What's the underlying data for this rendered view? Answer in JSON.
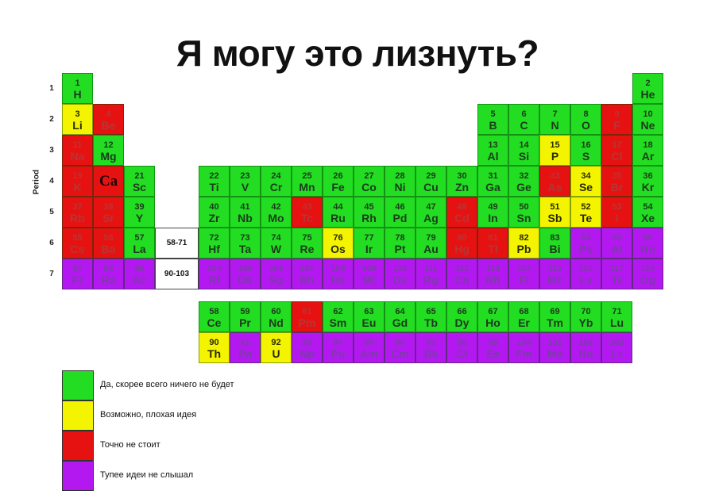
{
  "title": "Я могу это лизнуть?",
  "period_axis_label": "Period",
  "periods": [
    "1",
    "2",
    "3",
    "4",
    "5",
    "6",
    "7"
  ],
  "colors": {
    "g": "#22dd22",
    "y": "#f4f400",
    "r": "#e61212",
    "p": "#b418f0"
  },
  "legend": [
    {
      "category": "g",
      "label": "Да, скорее всего ничего не будет"
    },
    {
      "category": "y",
      "label": "Возможно, плохая идея"
    },
    {
      "category": "r",
      "label": "Точно не стоит"
    },
    {
      "category": "p",
      "label": "Тупее идеи не слышал"
    }
  ],
  "placeholders": {
    "lanthanides": "58-71",
    "actinides": "90-103"
  },
  "elements": [
    [
      "1",
      "H",
      1,
      1,
      "g"
    ],
    [
      "2",
      "He",
      1,
      18,
      "g"
    ],
    [
      "3",
      "Li",
      2,
      1,
      "y"
    ],
    [
      "4",
      "Be",
      2,
      2,
      "r"
    ],
    [
      "5",
      "B",
      2,
      13,
      "g"
    ],
    [
      "6",
      "C",
      2,
      14,
      "g"
    ],
    [
      "7",
      "N",
      2,
      15,
      "g"
    ],
    [
      "8",
      "O",
      2,
      16,
      "g"
    ],
    [
      "9",
      "F",
      2,
      17,
      "r"
    ],
    [
      "10",
      "Ne",
      2,
      18,
      "g"
    ],
    [
      "11",
      "Na",
      3,
      1,
      "r"
    ],
    [
      "12",
      "Mg",
      3,
      2,
      "g"
    ],
    [
      "13",
      "Al",
      3,
      13,
      "g"
    ],
    [
      "14",
      "Si",
      3,
      14,
      "g"
    ],
    [
      "15",
      "P",
      3,
      15,
      "y"
    ],
    [
      "16",
      "S",
      3,
      16,
      "g"
    ],
    [
      "17",
      "Cl",
      3,
      17,
      "r"
    ],
    [
      "18",
      "Ar",
      3,
      18,
      "g"
    ],
    [
      "19",
      "K",
      4,
      1,
      "r"
    ],
    [
      "",
      "Ca",
      4,
      2,
      "r"
    ],
    [
      "21",
      "Sc",
      4,
      3,
      "g"
    ],
    [
      "22",
      "Ti",
      4,
      4,
      "g"
    ],
    [
      "23",
      "V",
      4,
      5,
      "g"
    ],
    [
      "24",
      "Cr",
      4,
      6,
      "g"
    ],
    [
      "25",
      "Mn",
      4,
      7,
      "g"
    ],
    [
      "26",
      "Fe",
      4,
      8,
      "g"
    ],
    [
      "27",
      "Co",
      4,
      9,
      "g"
    ],
    [
      "28",
      "Ni",
      4,
      10,
      "g"
    ],
    [
      "29",
      "Cu",
      4,
      11,
      "g"
    ],
    [
      "30",
      "Zn",
      4,
      12,
      "g"
    ],
    [
      "31",
      "Ga",
      4,
      13,
      "g"
    ],
    [
      "32",
      "Ge",
      4,
      14,
      "g"
    ],
    [
      "33",
      "As",
      4,
      15,
      "r"
    ],
    [
      "34",
      "Se",
      4,
      16,
      "y"
    ],
    [
      "35",
      "Br",
      4,
      17,
      "r"
    ],
    [
      "36",
      "Kr",
      4,
      18,
      "g"
    ],
    [
      "37",
      "Rb",
      5,
      1,
      "r"
    ],
    [
      "38",
      "Sr",
      5,
      2,
      "r"
    ],
    [
      "39",
      "Y",
      5,
      3,
      "g"
    ],
    [
      "40",
      "Zr",
      5,
      4,
      "g"
    ],
    [
      "41",
      "Nb",
      5,
      5,
      "g"
    ],
    [
      "42",
      "Mo",
      5,
      6,
      "g"
    ],
    [
      "43",
      "Tc",
      5,
      7,
      "r"
    ],
    [
      "44",
      "Ru",
      5,
      8,
      "g"
    ],
    [
      "45",
      "Rh",
      5,
      9,
      "g"
    ],
    [
      "46",
      "Pd",
      5,
      10,
      "g"
    ],
    [
      "47",
      "Ag",
      5,
      11,
      "g"
    ],
    [
      "48",
      "Cd",
      5,
      12,
      "r"
    ],
    [
      "49",
      "In",
      5,
      13,
      "g"
    ],
    [
      "50",
      "Sn",
      5,
      14,
      "g"
    ],
    [
      "51",
      "Sb",
      5,
      15,
      "y"
    ],
    [
      "52",
      "Te",
      5,
      16,
      "y"
    ],
    [
      "53",
      "I",
      5,
      17,
      "r"
    ],
    [
      "54",
      "Xe",
      5,
      18,
      "g"
    ],
    [
      "55",
      "Cs",
      6,
      1,
      "r"
    ],
    [
      "56",
      "Ba",
      6,
      2,
      "r"
    ],
    [
      "57",
      "La",
      6,
      3,
      "g"
    ],
    [
      "72",
      "Hf",
      6,
      4,
      "g"
    ],
    [
      "73",
      "Ta",
      6,
      5,
      "g"
    ],
    [
      "74",
      "W",
      6,
      6,
      "g"
    ],
    [
      "75",
      "Re",
      6,
      7,
      "g"
    ],
    [
      "76",
      "Os",
      6,
      8,
      "y"
    ],
    [
      "77",
      "Ir",
      6,
      9,
      "g"
    ],
    [
      "78",
      "Pt",
      6,
      10,
      "g"
    ],
    [
      "79",
      "Au",
      6,
      11,
      "g"
    ],
    [
      "80",
      "Hg",
      6,
      12,
      "r"
    ],
    [
      "81",
      "Tl",
      6,
      13,
      "r"
    ],
    [
      "82",
      "Pb",
      6,
      14,
      "y"
    ],
    [
      "83",
      "Bi",
      6,
      15,
      "g"
    ],
    [
      "84",
      "Po",
      6,
      16,
      "p"
    ],
    [
      "85",
      "At",
      6,
      17,
      "p"
    ],
    [
      "86",
      "Rn",
      6,
      18,
      "p"
    ],
    [
      "87",
      "Fr",
      7,
      1,
      "p"
    ],
    [
      "88",
      "Ra",
      7,
      2,
      "p"
    ],
    [
      "89",
      "Ac",
      7,
      3,
      "p"
    ],
    [
      "104",
      "Rf",
      7,
      4,
      "p"
    ],
    [
      "105",
      "Db",
      7,
      5,
      "p"
    ],
    [
      "106",
      "Sg",
      7,
      6,
      "p"
    ],
    [
      "107",
      "Bh",
      7,
      7,
      "p"
    ],
    [
      "108",
      "Hs",
      7,
      8,
      "p"
    ],
    [
      "109",
      "Mt",
      7,
      9,
      "p"
    ],
    [
      "110",
      "Ds",
      7,
      10,
      "p"
    ],
    [
      "111",
      "Rg",
      7,
      11,
      "p"
    ],
    [
      "112",
      "Cn",
      7,
      12,
      "p"
    ],
    [
      "113",
      "Nh",
      7,
      13,
      "p"
    ],
    [
      "114",
      "Fl",
      7,
      14,
      "p"
    ],
    [
      "115",
      "Mc",
      7,
      15,
      "p"
    ],
    [
      "116",
      "Lv",
      7,
      16,
      "p"
    ],
    [
      "117",
      "Ts",
      7,
      17,
      "p"
    ],
    [
      "118",
      "Og",
      7,
      18,
      "p"
    ]
  ],
  "lanthanides": [
    [
      "58",
      "Ce",
      "g"
    ],
    [
      "59",
      "Pr",
      "g"
    ],
    [
      "60",
      "Nd",
      "g"
    ],
    [
      "61",
      "Pm",
      "r"
    ],
    [
      "62",
      "Sm",
      "g"
    ],
    [
      "63",
      "Eu",
      "g"
    ],
    [
      "64",
      "Gd",
      "g"
    ],
    [
      "65",
      "Tb",
      "g"
    ],
    [
      "66",
      "Dy",
      "g"
    ],
    [
      "67",
      "Ho",
      "g"
    ],
    [
      "68",
      "Er",
      "g"
    ],
    [
      "69",
      "Tm",
      "g"
    ],
    [
      "70",
      "Yb",
      "g"
    ],
    [
      "71",
      "Lu",
      "g"
    ]
  ],
  "actinides": [
    [
      "90",
      "Th",
      "y"
    ],
    [
      "91",
      "Pa",
      "p"
    ],
    [
      "92",
      "U",
      "y"
    ],
    [
      "93",
      "Np",
      "p"
    ],
    [
      "94",
      "Pu",
      "p"
    ],
    [
      "95",
      "Am",
      "p"
    ],
    [
      "96",
      "Cm",
      "p"
    ],
    [
      "97",
      "Bk",
      "p"
    ],
    [
      "98",
      "Cf",
      "p"
    ],
    [
      "99",
      "Es",
      "p"
    ],
    [
      "100",
      "Fm",
      "p"
    ],
    [
      "101",
      "Md",
      "p"
    ],
    [
      "102",
      "No",
      "p"
    ],
    [
      "103",
      "Lr",
      "p"
    ]
  ]
}
